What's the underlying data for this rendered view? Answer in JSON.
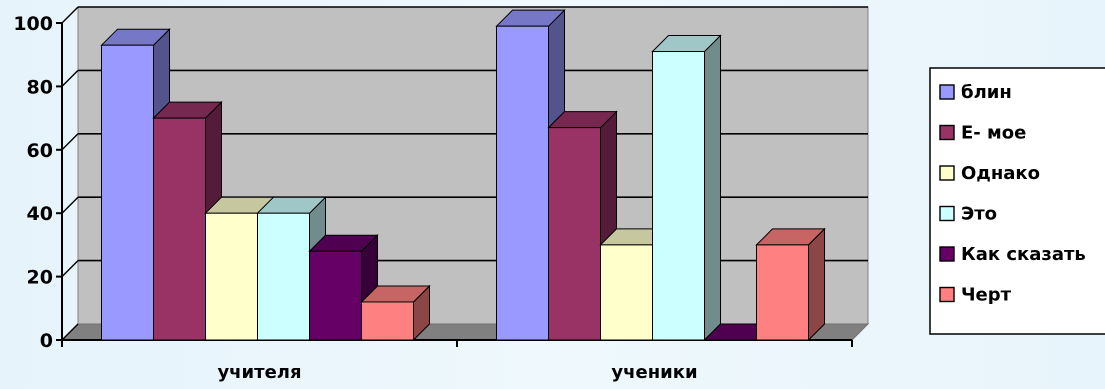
{
  "chart_data": {
    "type": "bar",
    "categories": [
      "учителя",
      "ученики"
    ],
    "series": [
      {
        "name": "блин",
        "values": [
          93,
          99
        ],
        "color": "#9999ff"
      },
      {
        "name": "Е- мое",
        "values": [
          70,
          67
        ],
        "color": "#993366"
      },
      {
        "name": "Однако",
        "values": [
          40,
          30
        ],
        "color": "#ffffcc"
      },
      {
        "name": "Это",
        "values": [
          40,
          91
        ],
        "color": "#ccffff"
      },
      {
        "name": "Как сказать",
        "values": [
          28,
          0
        ],
        "color": "#660066"
      },
      {
        "name": "Черт",
        "values": [
          12,
          30
        ],
        "color": "#ff8080"
      }
    ],
    "ylim": [
      0,
      100
    ],
    "yticks": [
      "0",
      "20",
      "40",
      "60",
      "80",
      "100"
    ],
    "grid": true,
    "legend_position": "right",
    "three_d": true,
    "title": "",
    "xlabel": "",
    "ylabel": ""
  }
}
